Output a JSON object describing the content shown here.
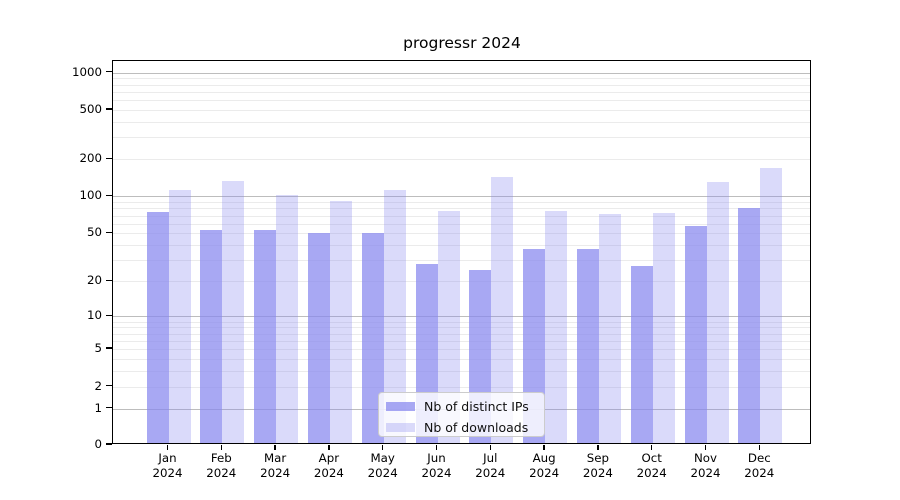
{
  "chart_data": {
    "type": "bar",
    "title": "progressr 2024",
    "categories": [
      "Jan",
      "Feb",
      "Mar",
      "Apr",
      "May",
      "Jun",
      "Jul",
      "Aug",
      "Sep",
      "Oct",
      "Nov",
      "Dec"
    ],
    "year_label": "2024",
    "series": [
      {
        "name": "Nb of distinct IPs",
        "color": "#a9a9f1",
        "fill": "rgba(134,134,238,0.72)",
        "values": [
          75,
          53,
          53,
          50,
          50,
          28,
          25,
          37,
          37,
          27,
          58,
          80
        ]
      },
      {
        "name": "Nb of downloads",
        "color": "#dcdcf8",
        "fill": "rgba(134,134,238,0.30)",
        "values": [
          113,
          134,
          102,
          92,
          112,
          76,
          145,
          76,
          72,
          74,
          130,
          170
        ]
      }
    ],
    "yscale": "log1p",
    "ylim": [
      0,
      1000
    ],
    "y_ticks": [
      0,
      1,
      2,
      5,
      10,
      20,
      50,
      100,
      200,
      500,
      1000
    ],
    "grid": true,
    "gridline_major_color": "#bdbdbd",
    "gridline_minor_color": "#ebebeb",
    "legend_position": "lower center",
    "xlabel": "",
    "ylabel": ""
  }
}
